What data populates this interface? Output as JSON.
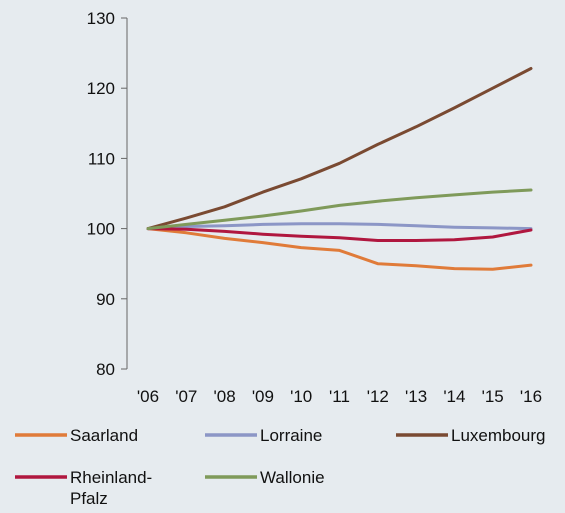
{
  "chart_data": {
    "type": "line",
    "title": "",
    "xlabel": "",
    "ylabel": "",
    "categories": [
      "'06",
      "'07",
      "'08",
      "'09",
      "'10",
      "'11",
      "'12",
      "'13",
      "'14",
      "'15",
      "'16"
    ],
    "ylim": [
      80,
      130
    ],
    "yticks": [
      80,
      90,
      100,
      110,
      120,
      130
    ],
    "grid": false,
    "legend_position": "bottom",
    "series": [
      {
        "name": "Saarland",
        "color": "#e07b39",
        "values": [
          100,
          99.4,
          98.6,
          98.0,
          97.3,
          96.9,
          95.0,
          94.7,
          94.3,
          94.2,
          94.8
        ]
      },
      {
        "name": "Lorraine",
        "color": "#8c96c6",
        "values": [
          100,
          100.3,
          100.4,
          100.6,
          100.7,
          100.7,
          100.6,
          100.4,
          100.2,
          100.1,
          100.0
        ]
      },
      {
        "name": "Luxembourg",
        "color": "#7a4a32",
        "values": [
          100,
          101.5,
          103.1,
          105.2,
          107.1,
          109.3,
          112.0,
          114.5,
          117.2,
          120.0,
          122.8
        ]
      },
      {
        "name": "Rheinland-Pfalz",
        "color": "#b0173f",
        "values": [
          100,
          99.9,
          99.6,
          99.2,
          98.9,
          98.7,
          98.3,
          98.3,
          98.4,
          98.8,
          99.8
        ]
      },
      {
        "name": "Wallonie",
        "color": "#7f9a5a",
        "values": [
          100,
          100.6,
          101.2,
          101.8,
          102.5,
          103.3,
          103.9,
          104.4,
          104.8,
          105.2,
          105.5
        ]
      }
    ]
  }
}
